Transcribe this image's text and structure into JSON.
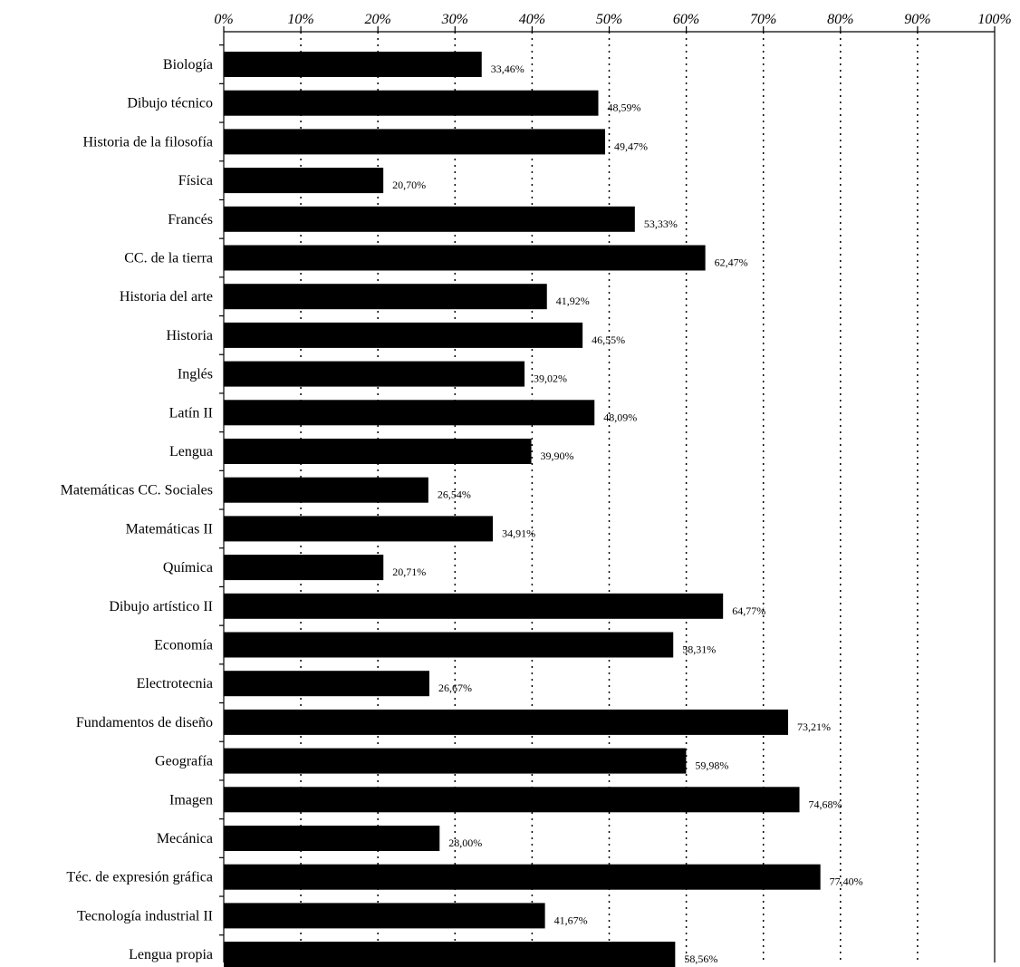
{
  "chart_data": {
    "type": "bar",
    "orientation": "horizontal",
    "title": "",
    "xlabel": "",
    "ylabel": "",
    "xlim": [
      0,
      100
    ],
    "x_ticks": [
      0,
      10,
      20,
      30,
      40,
      50,
      60,
      70,
      80,
      90,
      100
    ],
    "x_tick_labels": [
      "0%",
      "10%",
      "20%",
      "30%",
      "40%",
      "50%",
      "60%",
      "70%",
      "80%",
      "90%",
      "100%"
    ],
    "x_axis_position": "top",
    "grid": "vertical-dotted",
    "legend": "none",
    "bar_color": "#000000",
    "categories": [
      "Biología",
      "Dibujo técnico",
      "Historia de la filosofía",
      "Física",
      "Francés",
      "CC. de la tierra",
      "Historia del arte",
      "Historia",
      "Inglés",
      "Latín II",
      "Lengua",
      "Matemáticas CC. Sociales",
      "Matemáticas II",
      "Química",
      "Dibujo artístico II",
      "Economía",
      "Electrotecnia",
      "Fundamentos de diseño",
      "Geografía",
      "Imagen",
      "Mecánica",
      "Téc. de expresión gráfica",
      "Tecnología industrial II",
      "Lengua propia"
    ],
    "values": [
      33.46,
      48.59,
      49.47,
      20.7,
      53.33,
      62.47,
      41.92,
      46.55,
      39.02,
      48.09,
      39.9,
      26.54,
      34.91,
      20.71,
      64.77,
      58.31,
      26.67,
      73.21,
      59.98,
      74.68,
      28.0,
      77.4,
      41.67,
      58.56
    ],
    "value_labels": [
      "33,46%",
      "48,59%",
      "49,47%",
      "20,70%",
      "53,33%",
      "62,47%",
      "41,92%",
      "46,55%",
      "39,02%",
      "48,09%",
      "39,90%",
      "26,54%",
      "34,91%",
      "20,71%",
      "64,77%",
      "58,31%",
      "26,67%",
      "73,21%",
      "59,98%",
      "74,68%",
      "28,00%",
      "77,40%",
      "41,67%",
      "58,56%"
    ]
  }
}
